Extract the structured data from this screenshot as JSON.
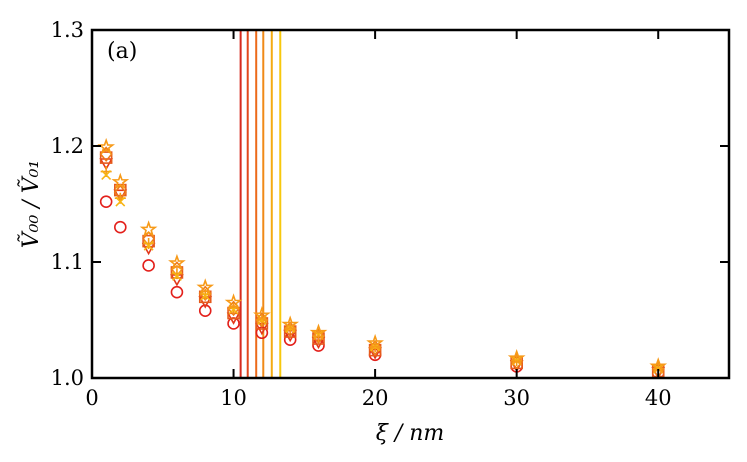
{
  "chart_data": {
    "type": "scatter",
    "panel_label": "(a)",
    "xlabel": "ξ / nm",
    "ylabel": "Ṽ₀₀ / Ṽ₀₁",
    "xlim": [
      0,
      45
    ],
    "ylim": [
      1.0,
      1.3
    ],
    "xticks": [
      0,
      10,
      20,
      30,
      40
    ],
    "yticks": [
      1.0,
      1.1,
      1.2,
      1.3
    ],
    "xtick_labels": [
      "0",
      "10",
      "20",
      "30",
      "40"
    ],
    "ytick_labels": [
      "1.0",
      "1.1",
      "1.2",
      "1.3"
    ],
    "grid": false,
    "vertical_lines": [
      {
        "x": 10.5,
        "color": "#d62a1e"
      },
      {
        "x": 11.0,
        "color": "#e2461c"
      },
      {
        "x": 11.6,
        "color": "#ec6a1a"
      },
      {
        "x": 12.1,
        "color": "#f08a18"
      },
      {
        "x": 12.7,
        "color": "#f4ab12"
      },
      {
        "x": 13.3,
        "color": "#f7c80c"
      }
    ],
    "x": [
      1,
      2,
      4,
      6,
      8,
      10,
      12,
      14,
      16,
      20,
      30,
      40
    ],
    "series": [
      {
        "marker": "circle",
        "color": "#e3201b",
        "values": [
          1.152,
          1.13,
          1.097,
          1.074,
          1.058,
          1.047,
          1.039,
          1.033,
          1.028,
          1.02,
          1.01,
          1.004
        ]
      },
      {
        "marker": "triangle-down",
        "color": "#e3381b",
        "values": [
          1.185,
          1.158,
          1.112,
          1.085,
          1.066,
          1.052,
          1.043,
          1.037,
          1.031,
          1.022,
          1.011,
          1.005
        ]
      },
      {
        "marker": "square",
        "color": "#e65a1c",
        "values": [
          1.19,
          1.162,
          1.118,
          1.091,
          1.07,
          1.056,
          1.047,
          1.04,
          1.034,
          1.024,
          1.013,
          1.006
        ]
      },
      {
        "marker": "diamond",
        "color": "#ee7b1a",
        "values": [
          1.193,
          1.16,
          1.12,
          1.094,
          1.073,
          1.06,
          1.05,
          1.042,
          1.036,
          1.026,
          1.014,
          1.007
        ]
      },
      {
        "marker": "plus",
        "color": "#f59b16",
        "values": [
          1.178,
          1.155,
          1.116,
          1.09,
          1.072,
          1.06,
          1.05,
          1.043,
          1.036,
          1.027,
          1.015,
          1.008
        ]
      },
      {
        "marker": "cross",
        "color": "#f7b513",
        "values": [
          1.175,
          1.152,
          1.114,
          1.088,
          1.071,
          1.059,
          1.05,
          1.043,
          1.037,
          1.027,
          1.015,
          1.008
        ]
      },
      {
        "marker": "star",
        "color": "#f79a18",
        "values": [
          1.199,
          1.169,
          1.128,
          1.099,
          1.078,
          1.065,
          1.054,
          1.046,
          1.039,
          1.03,
          1.017,
          1.01
        ]
      }
    ]
  }
}
